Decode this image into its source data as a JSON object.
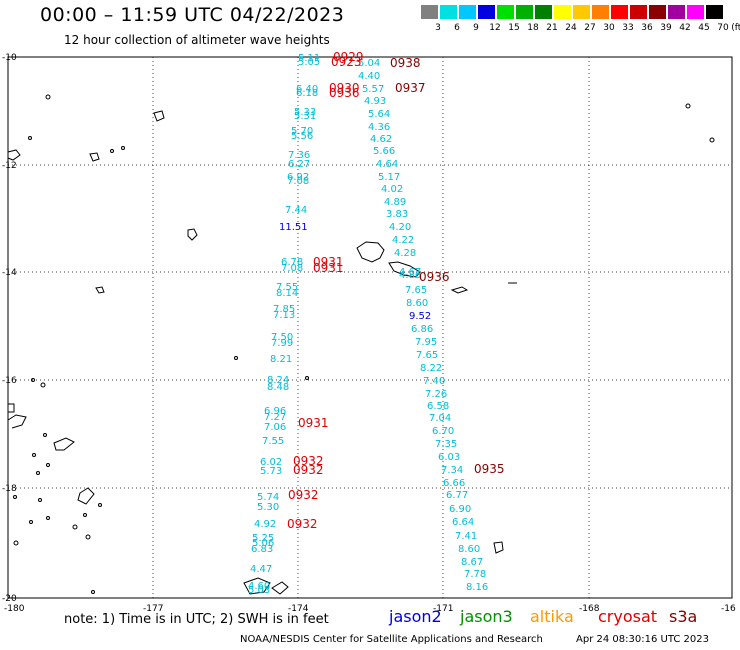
{
  "header": {
    "title": "00:00 – 11:59 UTC 04/22/2023",
    "subtitle": "12 hour collection of altimeter wave heights"
  },
  "colorbar": {
    "unit": "(ft)",
    "labels": [
      "3",
      "6",
      "9",
      "12",
      "15",
      "18",
      "21",
      "24",
      "27",
      "30",
      "33",
      "36",
      "39",
      "42",
      "45",
      "70"
    ],
    "colors": [
      "#808080",
      "#00e0e0",
      "#00c8ff",
      "#0000e0",
      "#00e000",
      "#00b000",
      "#008000",
      "#ffff00",
      "#ffc800",
      "#ff8000",
      "#ff0000",
      "#cc0000",
      "#880000",
      "#a000a0",
      "#ff00ff",
      "#000000"
    ]
  },
  "map": {
    "lon_ticks": [
      "-180",
      "-177",
      "-174",
      "-171",
      "-168",
      "-16"
    ],
    "lat_ticks": [
      "-10",
      "-12",
      "-14",
      "-16",
      "-18",
      "-20"
    ]
  },
  "wave_heights": [
    {
      "v": "5.11",
      "c": "wv"
    },
    {
      "v": "5.05",
      "c": "wv"
    },
    {
      "v": "5.04",
      "c": "wv"
    },
    {
      "v": "4.40",
      "c": "wv"
    },
    {
      "v": "6.40",
      "c": "wv"
    },
    {
      "v": "6.18",
      "c": "wv"
    },
    {
      "v": "5.57",
      "c": "wv"
    },
    {
      "v": "4.93",
      "c": "wv"
    },
    {
      "v": "5.33",
      "c": "wv"
    },
    {
      "v": "5.31",
      "c": "wv"
    },
    {
      "v": "5.64",
      "c": "wv"
    },
    {
      "v": "4.36",
      "c": "wv"
    },
    {
      "v": "5.70",
      "c": "wv"
    },
    {
      "v": "5.56",
      "c": "wv"
    },
    {
      "v": "4.62",
      "c": "wv"
    },
    {
      "v": "7.36",
      "c": "wv"
    },
    {
      "v": "5.66",
      "c": "wv"
    },
    {
      "v": "6.27",
      "c": "wv"
    },
    {
      "v": "4.64",
      "c": "wv"
    },
    {
      "v": "6.92",
      "c": "wv"
    },
    {
      "v": "7.08",
      "c": "wv"
    },
    {
      "v": "5.17",
      "c": "wv"
    },
    {
      "v": "4.02",
      "c": "wv"
    },
    {
      "v": "4.89",
      "c": "wv"
    },
    {
      "v": "7.44",
      "c": "wv"
    },
    {
      "v": "3.83",
      "c": "wv"
    },
    {
      "v": "11.51",
      "c": "wv bl"
    },
    {
      "v": "4.20",
      "c": "wv"
    },
    {
      "v": "4.22",
      "c": "wv"
    },
    {
      "v": "4.28",
      "c": "wv"
    },
    {
      "v": "6.78",
      "c": "wv"
    },
    {
      "v": "7.08",
      "c": "wv"
    },
    {
      "v": "4.67",
      "c": "wv"
    },
    {
      "v": "4.86",
      "c": "wv"
    },
    {
      "v": "7.55",
      "c": "wv"
    },
    {
      "v": "8.14",
      "c": "wv"
    },
    {
      "v": "7.65",
      "c": "wv"
    },
    {
      "v": "8.60",
      "c": "wv"
    },
    {
      "v": "7.85",
      "c": "wv"
    },
    {
      "v": "7.13",
      "c": "wv"
    },
    {
      "v": "9.52",
      "c": "wv bl"
    },
    {
      "v": "6.86",
      "c": "wv"
    },
    {
      "v": "7.50",
      "c": "wv"
    },
    {
      "v": "7.99",
      "c": "wv"
    },
    {
      "v": "7.95",
      "c": "wv"
    },
    {
      "v": "7.65",
      "c": "wv"
    },
    {
      "v": "8.21",
      "c": "wv"
    },
    {
      "v": "8.22",
      "c": "wv"
    },
    {
      "v": "8.24",
      "c": "wv"
    },
    {
      "v": "8.48",
      "c": "wv"
    },
    {
      "v": "7.40",
      "c": "wv"
    },
    {
      "v": "7.26",
      "c": "wv"
    },
    {
      "v": "6.96",
      "c": "wv"
    },
    {
      "v": "6.58",
      "c": "wv"
    },
    {
      "v": "7.27",
      "c": "wv"
    },
    {
      "v": "7.04",
      "c": "wv"
    },
    {
      "v": "7.06",
      "c": "wv"
    },
    {
      "v": "6.70",
      "c": "wv"
    },
    {
      "v": "7.55",
      "c": "wv"
    },
    {
      "v": "7.35",
      "c": "wv"
    },
    {
      "v": "6.03",
      "c": "wv"
    },
    {
      "v": "6.02",
      "c": "wv"
    },
    {
      "v": "7.34",
      "c": "wv"
    },
    {
      "v": "5.73",
      "c": "wv"
    },
    {
      "v": "6.66",
      "c": "wv"
    },
    {
      "v": "5.74",
      "c": "wv"
    },
    {
      "v": "6.77",
      "c": "wv"
    },
    {
      "v": "5.30",
      "c": "wv"
    },
    {
      "v": "6.90",
      "c": "wv"
    },
    {
      "v": "6.64",
      "c": "wv"
    },
    {
      "v": "4.92",
      "c": "wv"
    },
    {
      "v": "5.25",
      "c": "wv"
    },
    {
      "v": "7.41",
      "c": "wv"
    },
    {
      "v": "5.06",
      "c": "wv"
    },
    {
      "v": "6.83",
      "c": "wv"
    },
    {
      "v": "8.60",
      "c": "wv"
    },
    {
      "v": "8.67",
      "c": "wv"
    },
    {
      "v": "4.47",
      "c": "wv"
    },
    {
      "v": "7.78",
      "c": "wv"
    },
    {
      "v": "4.60",
      "c": "wv"
    },
    {
      "v": "8.16",
      "c": "wv"
    },
    {
      "v": "5.03",
      "c": "wv"
    }
  ],
  "pass_times": [
    {
      "v": "0929",
      "c": "tm"
    },
    {
      "v": "0938",
      "c": "tm dk"
    },
    {
      "v": "0923",
      "c": "tm"
    },
    {
      "v": "0930",
      "c": "tm"
    },
    {
      "v": "0937",
      "c": "tm dk"
    },
    {
      "v": "0936",
      "c": "tm"
    },
    {
      "v": "0931",
      "c": "tm"
    },
    {
      "v": "0931",
      "c": "tm"
    },
    {
      "v": "0936",
      "c": "tm dk"
    },
    {
      "v": "0931",
      "c": "tm"
    },
    {
      "v": "0932",
      "c": "tm"
    },
    {
      "v": "0932",
      "c": "tm"
    },
    {
      "v": "0935",
      "c": "tm dk"
    },
    {
      "v": "0932",
      "c": "tm"
    },
    {
      "v": "0932",
      "c": "tm"
    }
  ],
  "note": "note: 1) Time is in UTC; 2) SWH is in feet",
  "satellites": [
    {
      "name": "jason2",
      "color": "#0000dd"
    },
    {
      "name": "jason3",
      "color": "#009000"
    },
    {
      "name": "altika",
      "color": "#ff9900"
    },
    {
      "name": "cryosat",
      "color": "#dd0000"
    },
    {
      "name": "s3a",
      "color": "#880000"
    }
  ],
  "footer": {
    "credit": "NOAA/NESDIS Center for Satellite Applications and Research",
    "timestamp": "Apr 24 08:30:16 UTC 2023"
  }
}
